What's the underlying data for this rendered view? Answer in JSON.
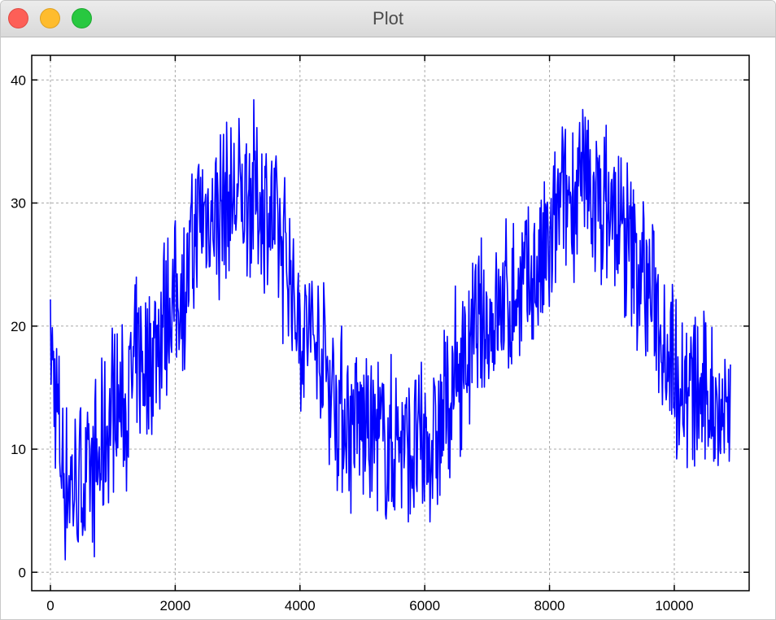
{
  "window": {
    "title": "Plot",
    "controls": {
      "close": "#fd5f57",
      "minimize": "#febc2e",
      "maximize": "#28c840"
    }
  },
  "chart_data": {
    "type": "line",
    "title": "",
    "xlabel": "",
    "ylabel": "",
    "xlim": [
      -300,
      11200
    ],
    "ylim": [
      -1.5,
      42
    ],
    "xticks": [
      0,
      2000,
      4000,
      6000,
      8000,
      10000
    ],
    "yticks": [
      0,
      10,
      20,
      30,
      40
    ],
    "grid": true,
    "grid_style": "dashed",
    "line_color": "#0000ff",
    "series": [
      {
        "x": [
          0,
          200,
          400,
          600,
          800,
          1000,
          1200,
          1400,
          1600,
          1800,
          2000,
          2200,
          2400,
          2600,
          2800,
          3000,
          3200,
          3400,
          3600,
          3800,
          4000,
          4200,
          4400,
          4600,
          4800,
          5000,
          5200,
          5400,
          5600,
          5800,
          6000,
          6200,
          6400,
          6600,
          6800,
          7000,
          7200,
          7400,
          7600,
          7800,
          8000,
          8200,
          8400,
          8600,
          8800,
          9000,
          9200,
          9400,
          9600,
          9800,
          10000,
          10200,
          10400,
          10600,
          10800,
          10900
        ],
        "values": [
          18.8,
          8,
          7,
          7.5,
          9,
          14,
          13,
          17,
          17,
          21,
          22,
          24,
          29,
          29,
          30,
          30,
          31,
          30,
          28,
          25,
          20,
          19,
          17,
          14,
          12,
          12,
          11,
          10,
          11,
          10,
          10,
          11,
          14,
          17,
          19,
          20,
          21,
          22,
          23,
          24,
          26,
          30,
          31,
          31,
          30,
          29,
          27,
          25,
          23,
          20,
          17,
          15,
          14,
          14,
          14,
          13.5
        ],
        "noise_range": [
          0,
          41
        ]
      }
    ]
  }
}
